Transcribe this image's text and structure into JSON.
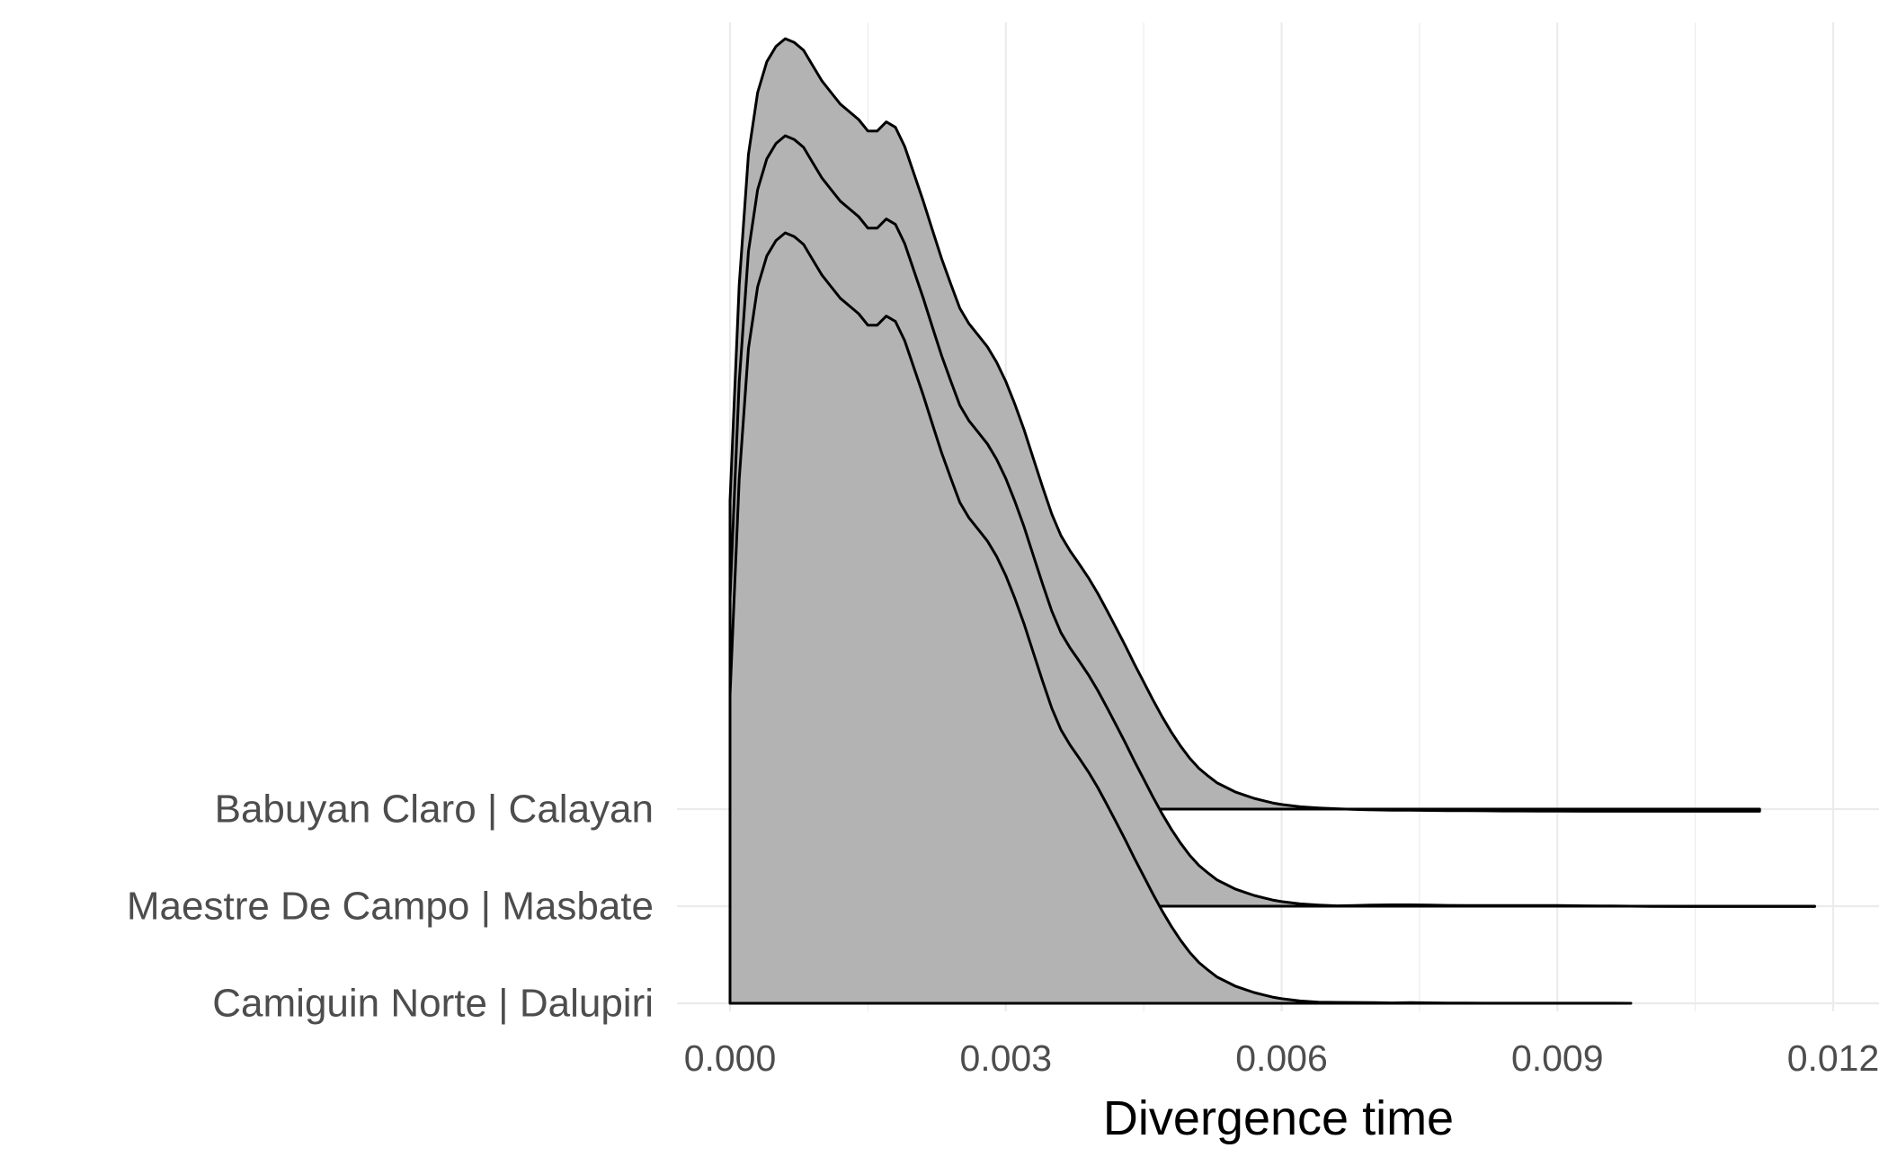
{
  "chart_data": {
    "type": "area",
    "subtype": "ridgeline density",
    "title": "",
    "xlabel": "Divergence time",
    "ylabel": "",
    "xlim": [
      0,
      0.012
    ],
    "x_ticks": [
      0,
      0.003,
      0.006,
      0.009,
      0.012
    ],
    "x_tick_labels": [
      "0.000",
      "0.003",
      "0.006",
      "0.009",
      "0.012"
    ],
    "grid": true,
    "legend": "none",
    "fill_color": "#b3b3b3",
    "line_color": "#000000",
    "categories": [
      "Babuyan Claro | Calayan",
      "Maestre De Campo | Masbate",
      "Camiguin Norte | Dalupiri"
    ],
    "series": [
      {
        "name": "Babuyan Claro | Calayan",
        "x": [
          0,
          0.0001,
          0.0002,
          0.0003,
          0.0004,
          0.0005,
          0.0006,
          0.0007,
          0.0008,
          0.0009,
          0.001,
          0.0011,
          0.0012,
          0.0013,
          0.0014,
          0.0015,
          0.0016,
          0.0017,
          0.0018,
          0.0019,
          0.002,
          0.0021,
          0.0022,
          0.0023,
          0.0024,
          0.0025,
          0.0026,
          0.0027,
          0.0028,
          0.0029,
          0.003,
          0.0031,
          0.0032,
          0.0033,
          0.0034,
          0.0035,
          0.0036,
          0.0037,
          0.0038,
          0.0039,
          0.004,
          0.0041,
          0.0042,
          0.0043,
          0.0044,
          0.0045,
          0.0046,
          0.0047,
          0.0048,
          0.0049,
          0.005,
          0.0051,
          0.0052,
          0.0053,
          0.0054,
          0.0055,
          0.0056,
          0.0057,
          0.0058,
          0.0059,
          0.006,
          0.0062,
          0.0064,
          0.0066,
          0.0068,
          0.007,
          0.0072,
          0.0074,
          0.0076,
          0.0078,
          0.008,
          0.0082,
          0.0084,
          0.0086,
          0.0088,
          0.009,
          0.0093,
          0.0095,
          0.0098,
          0.0102,
          0.0105,
          0.011,
          0.0112
        ],
        "density": [
          0.4,
          0.68,
          0.85,
          0.93,
          0.97,
          0.99,
          1.0,
          0.995,
          0.985,
          0.965,
          0.945,
          0.93,
          0.915,
          0.905,
          0.895,
          0.88,
          0.88,
          0.892,
          0.885,
          0.86,
          0.825,
          0.79,
          0.752,
          0.715,
          0.682,
          0.65,
          0.63,
          0.615,
          0.6,
          0.58,
          0.555,
          0.525,
          0.492,
          0.455,
          0.418,
          0.383,
          0.355,
          0.335,
          0.318,
          0.3,
          0.28,
          0.258,
          0.235,
          0.212,
          0.188,
          0.165,
          0.142,
          0.12,
          0.1,
          0.082,
          0.066,
          0.053,
          0.043,
          0.034,
          0.028,
          0.022,
          0.018,
          0.014,
          0.011,
          0.008,
          0.006,
          0.003,
          0.0015,
          0.0005,
          -0.0005,
          -0.001,
          -0.0015,
          -0.0015,
          -0.0018,
          -0.002,
          -0.002,
          -0.0022,
          -0.0025,
          -0.0025,
          -0.0027,
          -0.0027,
          -0.0028,
          -0.0028,
          -0.0028,
          -0.0028,
          -0.0028,
          -0.0028,
          -0.0028
        ]
      },
      {
        "name": "Maestre De Campo | Masbate",
        "x": [
          0,
          0.0001,
          0.0002,
          0.0003,
          0.0004,
          0.0005,
          0.0006,
          0.0007,
          0.0008,
          0.0009,
          0.001,
          0.0011,
          0.0012,
          0.0013,
          0.0014,
          0.0015,
          0.0016,
          0.0017,
          0.0018,
          0.0019,
          0.002,
          0.0021,
          0.0022,
          0.0023,
          0.0024,
          0.0025,
          0.0026,
          0.0027,
          0.0028,
          0.0029,
          0.003,
          0.0031,
          0.0032,
          0.0033,
          0.0034,
          0.0035,
          0.0036,
          0.0037,
          0.0038,
          0.0039,
          0.004,
          0.0041,
          0.0042,
          0.0043,
          0.0044,
          0.0045,
          0.0046,
          0.0047,
          0.0048,
          0.0049,
          0.005,
          0.0051,
          0.0052,
          0.0053,
          0.0054,
          0.0055,
          0.0056,
          0.0057,
          0.0058,
          0.0059,
          0.006,
          0.0062,
          0.0064,
          0.0066,
          0.0068,
          0.007,
          0.0072,
          0.0074,
          0.0076,
          0.0078,
          0.008,
          0.0082,
          0.0084,
          0.0086,
          0.0088,
          0.009,
          0.0093,
          0.0096,
          0.01,
          0.0104,
          0.0108,
          0.0112,
          0.0114,
          0.0116,
          0.0118
        ],
        "density": [
          0.4,
          0.68,
          0.85,
          0.93,
          0.97,
          0.99,
          1.0,
          0.995,
          0.985,
          0.965,
          0.945,
          0.93,
          0.915,
          0.905,
          0.895,
          0.88,
          0.88,
          0.892,
          0.885,
          0.86,
          0.825,
          0.79,
          0.752,
          0.715,
          0.682,
          0.65,
          0.63,
          0.615,
          0.6,
          0.58,
          0.555,
          0.525,
          0.492,
          0.455,
          0.418,
          0.383,
          0.355,
          0.335,
          0.318,
          0.3,
          0.28,
          0.258,
          0.235,
          0.212,
          0.188,
          0.165,
          0.142,
          0.12,
          0.1,
          0.082,
          0.066,
          0.053,
          0.043,
          0.034,
          0.028,
          0.022,
          0.018,
          0.014,
          0.011,
          0.008,
          0.006,
          0.003,
          0.0015,
          0.0005,
          0.0008,
          0.0015,
          0.0018,
          0.0018,
          0.0015,
          0.001,
          0.0008,
          0.0008,
          0.0008,
          0.0008,
          0.0008,
          0.0008,
          0.0005,
          0.0002,
          -0.0002,
          -0.0005,
          -0.0005,
          -0.0005,
          -0.0005,
          -0.0005,
          -0.0005
        ]
      },
      {
        "name": "Camiguin Norte | Dalupiri",
        "x": [
          0,
          0.0001,
          0.0002,
          0.0003,
          0.0004,
          0.0005,
          0.0006,
          0.0007,
          0.0008,
          0.0009,
          0.001,
          0.0011,
          0.0012,
          0.0013,
          0.0014,
          0.0015,
          0.0016,
          0.0017,
          0.0018,
          0.0019,
          0.002,
          0.0021,
          0.0022,
          0.0023,
          0.0024,
          0.0025,
          0.0026,
          0.0027,
          0.0028,
          0.0029,
          0.003,
          0.0031,
          0.0032,
          0.0033,
          0.0034,
          0.0035,
          0.0036,
          0.0037,
          0.0038,
          0.0039,
          0.004,
          0.0041,
          0.0042,
          0.0043,
          0.0044,
          0.0045,
          0.0046,
          0.0047,
          0.0048,
          0.0049,
          0.005,
          0.0051,
          0.0052,
          0.0053,
          0.0054,
          0.0055,
          0.0056,
          0.0057,
          0.0058,
          0.0059,
          0.006,
          0.0062,
          0.0064,
          0.0066,
          0.0068,
          0.007,
          0.0072,
          0.0074,
          0.0076,
          0.0078,
          0.008,
          0.0082,
          0.0084,
          0.0086,
          0.0088,
          0.009,
          0.0092,
          0.0094,
          0.0096,
          0.0098
        ],
        "density": [
          0.4,
          0.68,
          0.85,
          0.93,
          0.97,
          0.99,
          1.0,
          0.995,
          0.985,
          0.965,
          0.945,
          0.93,
          0.915,
          0.905,
          0.895,
          0.88,
          0.88,
          0.892,
          0.885,
          0.86,
          0.825,
          0.79,
          0.752,
          0.715,
          0.682,
          0.65,
          0.63,
          0.615,
          0.6,
          0.58,
          0.555,
          0.525,
          0.492,
          0.455,
          0.418,
          0.383,
          0.355,
          0.335,
          0.318,
          0.3,
          0.28,
          0.258,
          0.235,
          0.212,
          0.188,
          0.165,
          0.142,
          0.12,
          0.1,
          0.082,
          0.066,
          0.053,
          0.043,
          0.034,
          0.028,
          0.022,
          0.018,
          0.014,
          0.011,
          0.008,
          0.006,
          0.003,
          0.0015,
          0.0012,
          0.001,
          0.0008,
          0.0005,
          0.0008,
          0.0006,
          0.0003,
          0.0002,
          0.0001,
          0.0001,
          0.0001,
          0.0001,
          0.0001,
          0.0001,
          0.0001,
          0.0001,
          0.0
        ]
      }
    ]
  }
}
